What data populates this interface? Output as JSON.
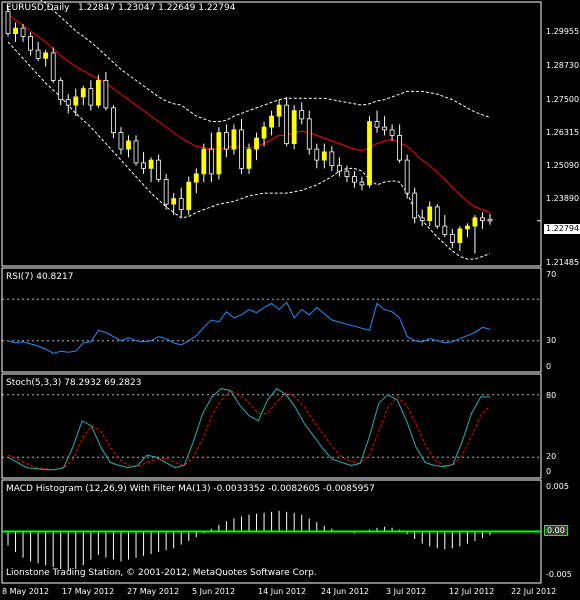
{
  "window": {
    "symbol": "EURUSD,Daily",
    "ohlc": "1.22847 1.23047 1.22649 1.22794",
    "footer": "Lionstone Trading Station, © 2001-2012, MetaQuotes Software Corp."
  },
  "chart_data": [
    {
      "type": "candlestick",
      "panel": "main",
      "ylim": [
        1.2115,
        1.3075
      ],
      "yticks": [
        "1.29955",
        "1.28730",
        "1.27500",
        "1.26315",
        "1.25090",
        "1.23890",
        "1.21485"
      ],
      "current_price": "1.22794",
      "x": [
        "8 May 2012",
        "17 May 2012",
        "27 May 2012",
        "5 Jun 2012",
        "14 Jun 2012",
        "24 Jun 2012",
        "3 Jul 2012",
        "12 Jul 2012",
        "22 Jul 2012"
      ],
      "candles": [
        [
          1.304,
          1.306,
          1.295,
          1.296
        ],
        [
          1.296,
          1.3,
          1.293,
          1.298
        ],
        [
          1.298,
          1.2995,
          1.293,
          1.295
        ],
        [
          1.295,
          1.2965,
          1.288,
          1.29
        ],
        [
          1.29,
          1.293,
          1.286,
          1.287
        ],
        [
          1.287,
          1.29,
          1.284,
          1.289
        ],
        [
          1.289,
          1.291,
          1.278,
          1.279
        ],
        [
          1.279,
          1.28,
          1.27,
          1.272
        ],
        [
          1.272,
          1.274,
          1.267,
          1.27
        ],
        [
          1.27,
          1.276,
          1.266,
          1.273
        ],
        [
          1.273,
          1.277,
          1.27,
          1.276
        ],
        [
          1.276,
          1.279,
          1.268,
          1.27
        ],
        [
          1.27,
          1.281,
          1.269,
          1.279
        ],
        [
          1.279,
          1.282,
          1.268,
          1.269
        ],
        [
          1.269,
          1.27,
          1.258,
          1.26
        ],
        [
          1.26,
          1.262,
          1.252,
          1.254
        ],
        [
          1.254,
          1.259,
          1.251,
          1.257
        ],
        [
          1.257,
          1.259,
          1.248,
          1.249
        ],
        [
          1.249,
          1.253,
          1.245,
          1.247
        ],
        [
          1.247,
          1.251,
          1.242,
          1.25
        ],
        [
          1.25,
          1.252,
          1.242,
          1.243
        ],
        [
          1.243,
          1.245,
          1.232,
          1.234
        ],
        [
          1.234,
          1.238,
          1.23,
          1.236
        ],
        [
          1.236,
          1.24,
          1.229,
          1.232
        ],
        [
          1.232,
          1.244,
          1.23,
          1.242
        ],
        [
          1.242,
          1.247,
          1.238,
          1.245
        ],
        [
          1.245,
          1.256,
          1.242,
          1.254
        ],
        [
          1.254,
          1.26,
          1.242,
          1.245
        ],
        [
          1.245,
          1.262,
          1.243,
          1.26
        ],
        [
          1.26,
          1.263,
          1.251,
          1.254
        ],
        [
          1.254,
          1.263,
          1.252,
          1.261
        ],
        [
          1.261,
          1.265,
          1.245,
          1.247
        ],
        [
          1.247,
          1.256,
          1.245,
          1.254
        ],
        [
          1.254,
          1.26,
          1.25,
          1.258
        ],
        [
          1.258,
          1.264,
          1.255,
          1.262
        ],
        [
          1.262,
          1.268,
          1.259,
          1.266
        ],
        [
          1.266,
          1.272,
          1.262,
          1.27
        ],
        [
          1.27,
          1.273,
          1.255,
          1.256
        ],
        [
          1.256,
          1.27,
          1.254,
          1.268
        ],
        [
          1.268,
          1.271,
          1.263,
          1.265
        ],
        [
          1.265,
          1.268,
          1.252,
          1.254
        ],
        [
          1.254,
          1.256,
          1.247,
          1.25
        ],
        [
          1.25,
          1.256,
          1.247,
          1.253
        ],
        [
          1.253,
          1.255,
          1.246,
          1.248
        ],
        [
          1.248,
          1.251,
          1.244,
          1.246
        ],
        [
          1.246,
          1.248,
          1.242,
          1.244
        ],
        [
          1.244,
          1.246,
          1.24,
          1.242
        ],
        [
          1.242,
          1.244,
          1.239,
          1.241
        ],
        [
          1.241,
          1.266,
          1.24,
          1.264
        ],
        [
          1.264,
          1.268,
          1.26,
          1.262
        ],
        [
          1.262,
          1.266,
          1.259,
          1.261
        ],
        [
          1.261,
          1.263,
          1.257,
          1.259
        ],
        [
          1.259,
          1.263,
          1.249,
          1.25
        ],
        [
          1.25,
          1.252,
          1.236,
          1.238
        ],
        [
          1.238,
          1.24,
          1.227,
          1.229
        ],
        [
          1.229,
          1.232,
          1.226,
          1.228
        ],
        [
          1.228,
          1.235,
          1.226,
          1.233
        ],
        [
          1.233,
          1.234,
          1.225,
          1.226
        ],
        [
          1.226,
          1.23,
          1.222,
          1.223
        ],
        [
          1.223,
          1.225,
          1.218,
          1.22
        ],
        [
          1.22,
          1.226,
          1.217,
          1.225
        ],
        [
          1.225,
          1.227,
          1.222,
          1.226
        ],
        [
          1.226,
          1.23,
          1.216,
          1.229
        ],
        [
          1.229,
          1.231,
          1.225,
          1.228
        ],
        [
          1.2285,
          1.2305,
          1.2265,
          1.2279
        ]
      ],
      "ma": [
        1.303,
        1.301,
        1.299,
        1.297,
        1.295,
        1.293,
        1.2905,
        1.288,
        1.286,
        1.284,
        1.2825,
        1.281,
        1.2795,
        1.278,
        1.276,
        1.274,
        1.272,
        1.27,
        1.268,
        1.266,
        1.264,
        1.262,
        1.26,
        1.258,
        1.2565,
        1.255,
        1.2545,
        1.254,
        1.254,
        1.2545,
        1.255,
        1.2545,
        1.2545,
        1.255,
        1.256,
        1.2575,
        1.259,
        1.259,
        1.26,
        1.2605,
        1.26,
        1.259,
        1.258,
        1.257,
        1.256,
        1.255,
        1.254,
        1.2535,
        1.2545,
        1.256,
        1.257,
        1.2575,
        1.2565,
        1.255,
        1.2525,
        1.25,
        1.248,
        1.2455,
        1.243,
        1.24,
        1.2375,
        1.235,
        1.233,
        1.232,
        1.231
      ],
      "band_upper": [
        1.314,
        1.313,
        1.312,
        1.3105,
        1.309,
        1.307,
        1.3045,
        1.302,
        1.2995,
        1.297,
        1.295,
        1.293,
        1.2905,
        1.288,
        1.2855,
        1.283,
        1.281,
        1.279,
        1.277,
        1.275,
        1.273,
        1.2715,
        1.2705,
        1.27,
        1.268,
        1.266,
        1.265,
        1.264,
        1.264,
        1.2645,
        1.266,
        1.267,
        1.268,
        1.269,
        1.27,
        1.271,
        1.272,
        1.2725,
        1.2725,
        1.2725,
        1.2725,
        1.2725,
        1.2725,
        1.272,
        1.2715,
        1.271,
        1.2705,
        1.27,
        1.2705,
        1.2715,
        1.272,
        1.273,
        1.274,
        1.275,
        1.275,
        1.275,
        1.2745,
        1.274,
        1.273,
        1.272,
        1.2705,
        1.269,
        1.2675,
        1.2665,
        1.2655
      ],
      "band_lower": [
        1.293,
        1.29,
        1.287,
        1.284,
        1.281,
        1.278,
        1.2755,
        1.273,
        1.27,
        1.267,
        1.2645,
        1.262,
        1.259,
        1.256,
        1.253,
        1.25,
        1.247,
        1.244,
        1.241,
        1.238,
        1.2355,
        1.233,
        1.231,
        1.229,
        1.2295,
        1.231,
        1.232,
        1.233,
        1.234,
        1.2345,
        1.235,
        1.236,
        1.237,
        1.2375,
        1.238,
        1.238,
        1.238,
        1.238,
        1.2385,
        1.239,
        1.24,
        1.241,
        1.2425,
        1.244,
        1.246,
        1.247,
        1.247,
        1.246,
        1.243,
        1.241,
        1.242,
        1.2425,
        1.242,
        1.238,
        1.232,
        1.228,
        1.225,
        1.222,
        1.2195,
        1.217,
        1.215,
        1.214,
        1.214,
        1.215,
        1.216
      ]
    },
    {
      "type": "line",
      "panel": "rsi",
      "title": "RSI(7) 40.8217",
      "ylim": [
        0,
        100
      ],
      "yticks": [
        "70",
        "30",
        "0"
      ],
      "levels": [
        70,
        30
      ],
      "values": [
        30,
        28,
        29,
        27,
        25,
        22,
        18,
        20,
        19,
        20,
        28,
        29,
        40,
        38,
        34,
        30,
        33,
        30,
        29,
        30,
        34,
        32,
        28,
        26,
        30,
        35,
        43,
        50,
        48,
        58,
        52,
        55,
        60,
        57,
        62,
        66,
        60,
        67,
        52,
        60,
        55,
        62,
        56,
        50,
        48,
        46,
        44,
        42,
        40,
        66,
        60,
        58,
        52,
        34,
        30,
        29,
        32,
        30,
        28,
        29,
        32,
        35,
        38,
        43,
        41
      ]
    },
    {
      "type": "line",
      "panel": "stoch",
      "title": "Stoch(5,3,3) 78.2932 69.2823",
      "ylim": [
        0,
        100
      ],
      "yticks": [
        "80",
        "20",
        "0"
      ],
      "levels": [
        80,
        20
      ],
      "main": [
        20,
        15,
        10,
        9,
        8,
        8,
        10,
        30,
        55,
        50,
        30,
        15,
        12,
        10,
        12,
        22,
        20,
        15,
        10,
        12,
        35,
        62,
        78,
        86,
        84,
        70,
        60,
        55,
        75,
        86,
        80,
        68,
        52,
        40,
        28,
        18,
        15,
        12,
        14,
        40,
        72,
        80,
        75,
        55,
        30,
        15,
        12,
        11,
        13,
        35,
        62,
        78,
        78
      ],
      "signal": [
        22,
        18,
        14,
        10,
        9,
        8,
        9,
        18,
        38,
        50,
        45,
        30,
        18,
        12,
        11,
        15,
        18,
        19,
        15,
        12,
        20,
        38,
        60,
        75,
        84,
        80,
        72,
        62,
        62,
        73,
        82,
        78,
        68,
        54,
        42,
        30,
        20,
        16,
        14,
        22,
        45,
        68,
        78,
        70,
        52,
        32,
        18,
        12,
        12,
        22,
        40,
        60,
        69
      ]
    },
    {
      "type": "bar",
      "panel": "macd",
      "title": "MACD Histogram (12,26,9) With Filter MA(13) -0.0033352 -0.0082605 -0.0085957",
      "ylim": [
        -0.0055,
        0.0055
      ],
      "yticks": [
        "0.005",
        "0.00",
        "-0.005"
      ],
      "values": [
        -0.0015,
        -0.0022,
        -0.0028,
        -0.0032,
        -0.0034,
        -0.0036,
        -0.0038,
        -0.004,
        -0.0042,
        -0.004,
        -0.0036,
        -0.003,
        -0.0025,
        -0.0028,
        -0.003,
        -0.0032,
        -0.003,
        -0.0028,
        -0.0026,
        -0.0024,
        -0.0022,
        -0.002,
        -0.0018,
        -0.0014,
        -0.001,
        -0.0006,
        -0.0002,
        0.0003,
        0.0007,
        0.0011,
        0.0014,
        0.0016,
        0.0018,
        0.0019,
        0.002,
        0.0021,
        0.0022,
        0.0021,
        0.002,
        0.0018,
        0.0014,
        0.001,
        0.0006,
        0.0003,
        0.0001,
        -0.0001,
        -0.0002,
        -0.0001,
        0.0002,
        0.0004,
        0.0005,
        0.0004,
        0.0002,
        -0.0003,
        -0.0008,
        -0.0013,
        -0.0016,
        -0.0018,
        -0.0019,
        -0.0018,
        -0.0016,
        -0.0013,
        -0.001,
        -0.0007,
        -0.0004
      ],
      "signal": 0.0
    }
  ],
  "colors": {
    "bull_candle": "#ffff00",
    "bear_candle": "#000000",
    "wick": "#ffffff",
    "ma": "#ff0000",
    "bands": "#ffffff",
    "rsi": "#1e90ff",
    "stoch_main": "#20b2aa",
    "stoch_signal": "#ff0000",
    "macd_bars": "#ffffff",
    "macd_signal": "#00ff00",
    "grid_border": "#ffffff",
    "level": "#ffffff"
  }
}
